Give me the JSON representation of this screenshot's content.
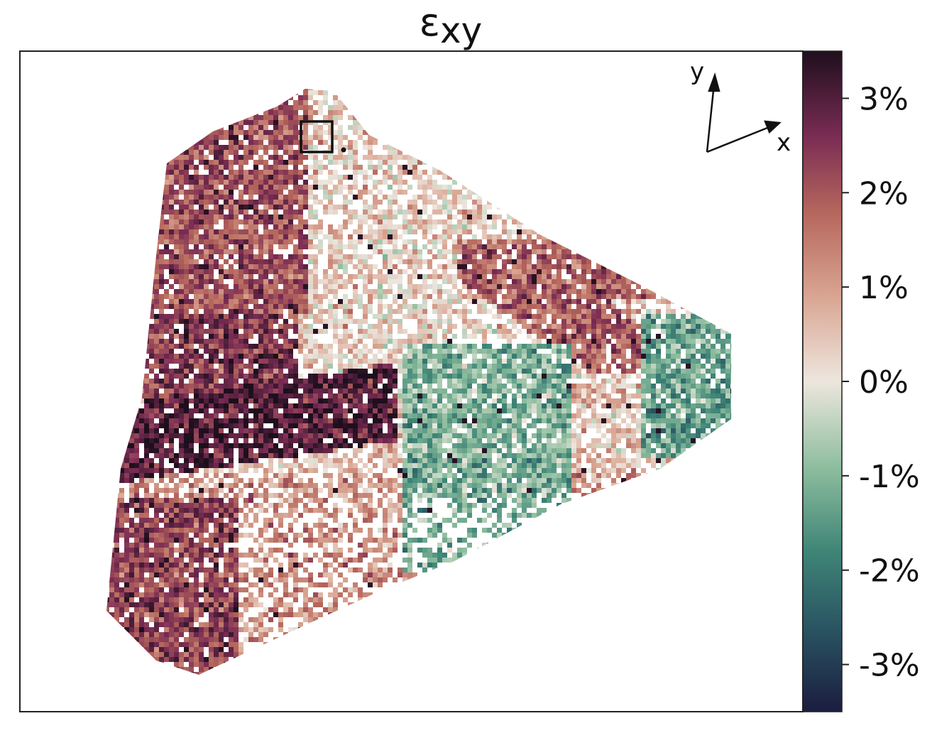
{
  "chart_data": {
    "type": "heatmap",
    "title": "ε",
    "title_sub": "xy",
    "colormap": {
      "name": "diverging teal-white-purple",
      "stops": [
        {
          "v": -3.5,
          "color": "#1b1d3f"
        },
        {
          "v": -2.6,
          "color": "#2a5563"
        },
        {
          "v": -1.8,
          "color": "#3f8577"
        },
        {
          "v": -0.9,
          "color": "#8fbe9f"
        },
        {
          "v": 0.0,
          "color": "#ede6de"
        },
        {
          "v": 0.9,
          "color": "#d9a592"
        },
        {
          "v": 1.8,
          "color": "#b5665c"
        },
        {
          "v": 2.6,
          "color": "#7a2c54"
        },
        {
          "v": 3.5,
          "color": "#1e0f1d"
        }
      ]
    },
    "colorbar": {
      "range": [
        -3.5,
        3.5
      ],
      "ticks": [
        3,
        2,
        1,
        0,
        -1,
        -2,
        -3
      ],
      "tick_labels": [
        "3%",
        "2%",
        "1%",
        "0%",
        "-1%",
        "-2%",
        "-3%"
      ]
    },
    "axes_labels": {
      "x": "x",
      "y": "y"
    },
    "grid": false,
    "regions": [
      {
        "name": "upper-left purple band",
        "mean_value_percent": 2.3
      },
      {
        "name": "middle-left dark band",
        "mean_value_percent": 3.0
      },
      {
        "name": "lower-left purple band",
        "mean_value_percent": 2.2
      },
      {
        "name": "right teal zone",
        "mean_value_percent": -1.2
      },
      {
        "name": "central light zone",
        "mean_value_percent": 0.5
      }
    ]
  }
}
